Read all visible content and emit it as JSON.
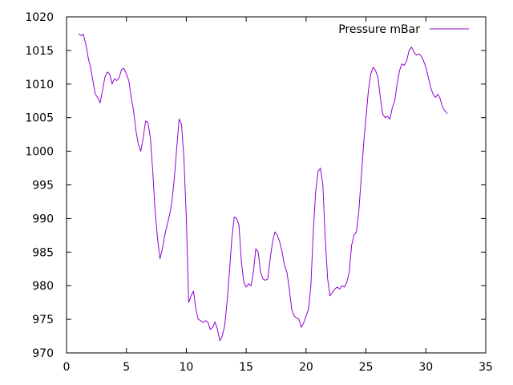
{
  "chart_data": {
    "type": "line",
    "title": "",
    "xlabel": "",
    "ylabel": "",
    "xlim": [
      0,
      35
    ],
    "ylim": [
      970,
      1020
    ],
    "x_ticks": [
      0,
      5,
      10,
      15,
      20,
      25,
      30,
      35
    ],
    "y_ticks": [
      970,
      975,
      980,
      985,
      990,
      995,
      1000,
      1005,
      1010,
      1015,
      1020
    ],
    "grid": false,
    "legend_position": "top-right",
    "series": [
      {
        "name": "Pressure mBar",
        "color": "#9400d3",
        "points": [
          [
            1.0,
            1017.5
          ],
          [
            1.2,
            1017.2
          ],
          [
            1.4,
            1017.4
          ],
          [
            1.6,
            1016.0
          ],
          [
            1.8,
            1014.0
          ],
          [
            2.0,
            1012.5
          ],
          [
            2.2,
            1010.5
          ],
          [
            2.4,
            1008.5
          ],
          [
            2.6,
            1008.0
          ],
          [
            2.8,
            1007.2
          ],
          [
            3.0,
            1009.0
          ],
          [
            3.2,
            1011.0
          ],
          [
            3.4,
            1011.8
          ],
          [
            3.6,
            1011.5
          ],
          [
            3.8,
            1010.0
          ],
          [
            4.0,
            1010.8
          ],
          [
            4.2,
            1010.5
          ],
          [
            4.4,
            1011.0
          ],
          [
            4.6,
            1012.2
          ],
          [
            4.8,
            1012.3
          ],
          [
            5.0,
            1011.5
          ],
          [
            5.2,
            1010.5
          ],
          [
            5.4,
            1008.0
          ],
          [
            5.6,
            1006.0
          ],
          [
            5.8,
            1003.0
          ],
          [
            6.0,
            1001.0
          ],
          [
            6.2,
            1000.0
          ],
          [
            6.4,
            1002.0
          ],
          [
            6.6,
            1004.5
          ],
          [
            6.8,
            1004.3
          ],
          [
            7.0,
            1002.0
          ],
          [
            7.2,
            997.0
          ],
          [
            7.4,
            991.0
          ],
          [
            7.6,
            987.0
          ],
          [
            7.8,
            984.0
          ],
          [
            8.0,
            985.5
          ],
          [
            8.2,
            987.5
          ],
          [
            8.4,
            989.0
          ],
          [
            8.6,
            990.5
          ],
          [
            8.8,
            992.5
          ],
          [
            9.0,
            996.0
          ],
          [
            9.2,
            1000.5
          ],
          [
            9.4,
            1004.8
          ],
          [
            9.6,
            1004.0
          ],
          [
            9.8,
            999.0
          ],
          [
            10.0,
            990.0
          ],
          [
            10.2,
            977.5
          ],
          [
            10.4,
            978.5
          ],
          [
            10.6,
            979.2
          ],
          [
            10.8,
            976.5
          ],
          [
            11.0,
            975.0
          ],
          [
            11.2,
            974.8
          ],
          [
            11.4,
            974.5
          ],
          [
            11.6,
            974.8
          ],
          [
            11.8,
            974.6
          ],
          [
            12.0,
            973.5
          ],
          [
            12.2,
            973.8
          ],
          [
            12.4,
            974.6
          ],
          [
            12.6,
            973.5
          ],
          [
            12.8,
            971.8
          ],
          [
            13.0,
            972.5
          ],
          [
            13.2,
            974.0
          ],
          [
            13.4,
            977.5
          ],
          [
            13.6,
            982.0
          ],
          [
            13.8,
            987.0
          ],
          [
            14.0,
            990.2
          ],
          [
            14.2,
            990.0
          ],
          [
            14.4,
            989.0
          ],
          [
            14.6,
            983.5
          ],
          [
            14.8,
            980.5
          ],
          [
            15.0,
            979.8
          ],
          [
            15.2,
            980.3
          ],
          [
            15.4,
            980.0
          ],
          [
            15.6,
            982.0
          ],
          [
            15.8,
            985.5
          ],
          [
            16.0,
            985.0
          ],
          [
            16.2,
            982.0
          ],
          [
            16.4,
            981.0
          ],
          [
            16.6,
            980.8
          ],
          [
            16.8,
            981.0
          ],
          [
            17.0,
            984.0
          ],
          [
            17.2,
            986.5
          ],
          [
            17.4,
            988.0
          ],
          [
            17.6,
            987.5
          ],
          [
            17.8,
            986.5
          ],
          [
            18.0,
            985.0
          ],
          [
            18.2,
            983.0
          ],
          [
            18.4,
            982.0
          ],
          [
            18.6,
            979.5
          ],
          [
            18.8,
            976.5
          ],
          [
            19.0,
            975.5
          ],
          [
            19.2,
            975.2
          ],
          [
            19.4,
            975.0
          ],
          [
            19.6,
            973.8
          ],
          [
            19.8,
            974.5
          ],
          [
            20.0,
            975.5
          ],
          [
            20.2,
            976.5
          ],
          [
            20.4,
            980.0
          ],
          [
            20.6,
            988.0
          ],
          [
            20.8,
            994.0
          ],
          [
            21.0,
            997.0
          ],
          [
            21.2,
            997.5
          ],
          [
            21.4,
            995.0
          ],
          [
            21.6,
            987.0
          ],
          [
            21.8,
            981.0
          ],
          [
            22.0,
            978.5
          ],
          [
            22.2,
            979.0
          ],
          [
            22.4,
            979.5
          ],
          [
            22.6,
            979.8
          ],
          [
            22.8,
            979.5
          ],
          [
            23.0,
            980.0
          ],
          [
            23.2,
            979.8
          ],
          [
            23.4,
            980.5
          ],
          [
            23.6,
            982.0
          ],
          [
            23.8,
            986.0
          ],
          [
            24.0,
            987.5
          ],
          [
            24.2,
            988.0
          ],
          [
            24.4,
            991.0
          ],
          [
            24.6,
            996.0
          ],
          [
            24.8,
            1001.0
          ],
          [
            25.0,
            1005.0
          ],
          [
            25.2,
            1009.0
          ],
          [
            25.4,
            1011.5
          ],
          [
            25.6,
            1012.5
          ],
          [
            25.8,
            1012.0
          ],
          [
            26.0,
            1011.0
          ],
          [
            26.2,
            1008.0
          ],
          [
            26.4,
            1005.5
          ],
          [
            26.6,
            1005.0
          ],
          [
            26.8,
            1005.2
          ],
          [
            27.0,
            1004.8
          ],
          [
            27.2,
            1006.5
          ],
          [
            27.4,
            1007.5
          ],
          [
            27.6,
            1010.0
          ],
          [
            27.8,
            1012.0
          ],
          [
            28.0,
            1013.0
          ],
          [
            28.2,
            1012.8
          ],
          [
            28.4,
            1013.5
          ],
          [
            28.6,
            1015.0
          ],
          [
            28.8,
            1015.5
          ],
          [
            29.0,
            1014.8
          ],
          [
            29.2,
            1014.3
          ],
          [
            29.4,
            1014.5
          ],
          [
            29.6,
            1014.2
          ],
          [
            29.8,
            1013.5
          ],
          [
            30.0,
            1012.5
          ],
          [
            30.2,
            1011.0
          ],
          [
            30.4,
            1009.5
          ],
          [
            30.6,
            1008.5
          ],
          [
            30.8,
            1008.0
          ],
          [
            31.0,
            1008.5
          ],
          [
            31.2,
            1007.8
          ],
          [
            31.4,
            1006.5
          ],
          [
            31.6,
            1006.0
          ],
          [
            31.8,
            1005.6
          ]
        ]
      }
    ]
  }
}
